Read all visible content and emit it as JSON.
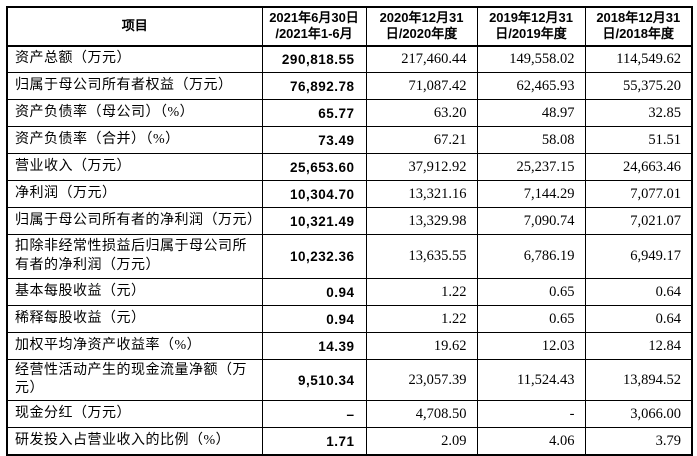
{
  "colors": {
    "border": "#000000",
    "background": "#ffffff",
    "text": "#000000"
  },
  "table": {
    "header": {
      "item": "项目",
      "periods": [
        "2021年6月30日\n/2021年1-6月",
        "2020年12月31\n日/2020年度",
        "2019年12月31\n日/2019年度",
        "2018年12月31\n日/2018年度"
      ]
    },
    "rows": [
      {
        "label": "资产总额（万元）",
        "values": [
          "290,818.55",
          "217,460.44",
          "149,558.02",
          "114,549.62"
        ]
      },
      {
        "label": "归属于母公司所有者权益（万元）",
        "values": [
          "76,892.78",
          "71,087.42",
          "62,465.93",
          "55,375.20"
        ]
      },
      {
        "label": "资产负债率（母公司）（%）",
        "values": [
          "65.77",
          "63.20",
          "48.97",
          "32.85"
        ]
      },
      {
        "label": "资产负债率（合并）（%）",
        "values": [
          "73.49",
          "67.21",
          "58.08",
          "51.51"
        ]
      },
      {
        "label": "营业收入（万元）",
        "values": [
          "25,653.60",
          "37,912.92",
          "25,237.15",
          "24,663.46"
        ]
      },
      {
        "label": "净利润（万元）",
        "values": [
          "10,304.70",
          "13,321.16",
          "7,144.29",
          "7,077.01"
        ]
      },
      {
        "label": "归属于母公司所有者的净利润（万元）",
        "values": [
          "10,321.49",
          "13,329.98",
          "7,090.74",
          "7,021.07"
        ]
      },
      {
        "label": "扣除非经常性损益后归属于母公司所有者的净利润（万元）",
        "values": [
          "10,232.36",
          "13,635.55",
          "6,786.19",
          "6,949.17"
        ]
      },
      {
        "label": "基本每股收益（元）",
        "values": [
          "0.94",
          "1.22",
          "0.65",
          "0.64"
        ]
      },
      {
        "label": "稀释每股收益（元）",
        "values": [
          "0.94",
          "1.22",
          "0.65",
          "0.64"
        ]
      },
      {
        "label": "加权平均净资产收益率（%）",
        "values": [
          "14.39",
          "19.62",
          "12.03",
          "12.84"
        ]
      },
      {
        "label": "经营性活动产生的现金流量净额（万元）",
        "values": [
          "9,510.34",
          "23,057.39",
          "11,524.43",
          "13,894.52"
        ]
      },
      {
        "label": "现金分红（万元）",
        "values": [
          "–",
          "4,708.50",
          "-",
          "3,066.00"
        ]
      },
      {
        "label": "研发投入占营业收入的比例（%）",
        "values": [
          "1.71",
          "2.09",
          "4.06",
          "3.79"
        ]
      }
    ]
  }
}
